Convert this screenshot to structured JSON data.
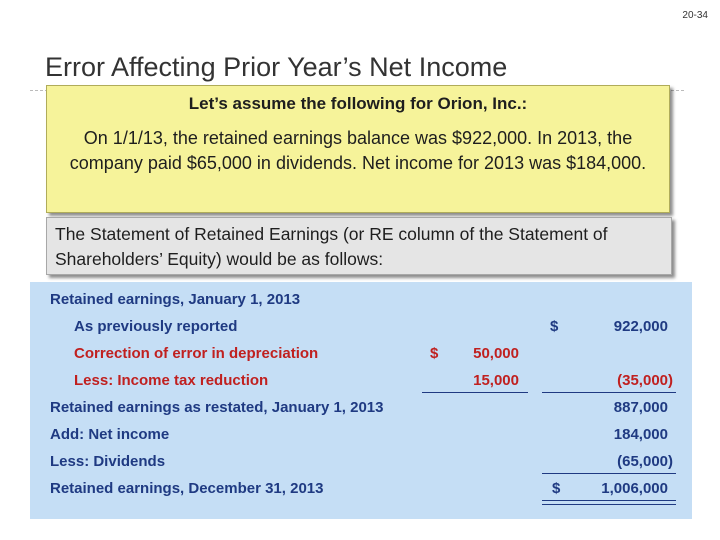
{
  "slide": {
    "page_number": "20-34",
    "title": "Error Affecting Prior Year’s Net Income"
  },
  "assumption_box": {
    "heading": "Let’s assume the following for Orion, Inc.:",
    "body": "On 1/1/13, the retained earnings balance was $922,000.  In 2013, the company paid $65,000 in dividends.  Net income for 2013 was $184,000."
  },
  "statement_box": {
    "text": "The Statement of Retained Earnings (or RE column of the Statement of Shareholders’ Equity) would be as follows:"
  },
  "statement": {
    "rows": [
      {
        "label": "Retained earnings, January 1, 2013",
        "col1": "",
        "col2": ""
      },
      {
        "label": "As previously reported",
        "col1": "",
        "col2": "922,000"
      },
      {
        "label": "Correction of error in depreciation",
        "col1": "50,000",
        "col2": ""
      },
      {
        "label": "Less: Income tax reduction",
        "col1": "15,000",
        "col2": "(35,000)"
      },
      {
        "label": "Retained earnings as restated, January 1, 2013",
        "col1": "",
        "col2": "887,000"
      },
      {
        "label": "Add: Net income",
        "col1": "",
        "col2": "184,000"
      },
      {
        "label": "Less: Dividends",
        "col1": "",
        "col2": "(65,000)"
      },
      {
        "label": "Retained earnings, December 31, 2013",
        "col1": "",
        "col2": "1,006,000"
      }
    ],
    "currency_symbol": "$"
  },
  "colors": {
    "label_text": "#1f3a82",
    "highlight_text": "#c0201f",
    "panel_bg": "#c5def5",
    "note_bg": "#f6f39a"
  }
}
